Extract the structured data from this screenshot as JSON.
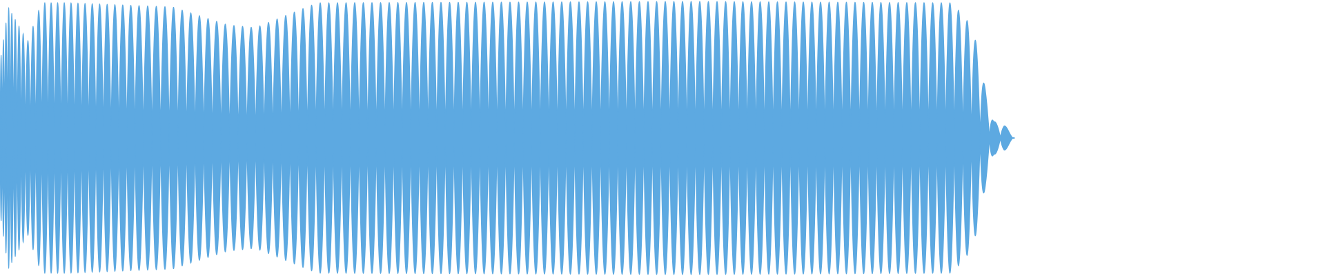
{
  "waveform": {
    "color": "#5DA9E1",
    "background": "#FFFFFF",
    "style": "chirp-like oscillation, dense at start, regular lobes in middle, fading tail at end"
  }
}
